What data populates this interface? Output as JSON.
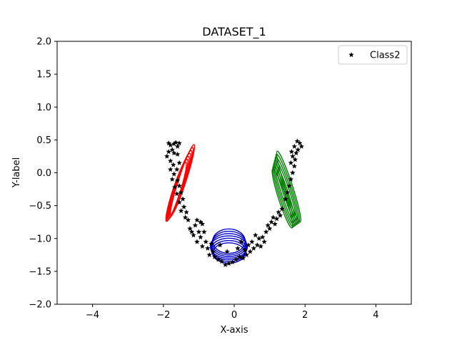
{
  "chart_data": {
    "type": "scatter",
    "title": "DATASET_1",
    "xlabel": "X-axis",
    "ylabel": "Y-label",
    "xlim": [
      -5,
      5
    ],
    "ylim": [
      -2,
      2
    ],
    "xticks": [
      -4,
      -2,
      0,
      2,
      4
    ],
    "xtick_labels": [
      "−4",
      "−2",
      "0",
      "2",
      "4"
    ],
    "yticks": [
      -2.0,
      -1.5,
      -1.0,
      -0.5,
      0.0,
      0.5,
      1.0,
      1.5,
      2.0
    ],
    "ytick_labels": [
      "−2.0",
      "−1.5",
      "−1.0",
      "−0.5",
      "0.0",
      "0.5",
      "1.0",
      "1.5",
      "2.0"
    ],
    "grid": false,
    "legend": {
      "position": "top-right",
      "entries": [
        "Class2"
      ]
    },
    "series": [
      {
        "name": "Class2",
        "marker": "star",
        "color": "#000000",
        "points": [
          [
            -1.85,
            0.45
          ],
          [
            -1.8,
            0.42
          ],
          [
            -1.7,
            0.44
          ],
          [
            -1.65,
            0.46
          ],
          [
            -1.55,
            0.45
          ],
          [
            -1.6,
            0.4
          ],
          [
            -1.75,
            0.35
          ],
          [
            -1.85,
            0.32
          ],
          [
            -1.9,
            0.25
          ],
          [
            -1.7,
            0.3
          ],
          [
            -1.6,
            0.28
          ],
          [
            -1.8,
            0.18
          ],
          [
            -1.72,
            0.12
          ],
          [
            -1.62,
            0.05
          ],
          [
            -1.8,
            0.05
          ],
          [
            -1.7,
            -0.02
          ],
          [
            -1.55,
            0.15
          ],
          [
            -1.75,
            -0.1
          ],
          [
            -1.6,
            -0.12
          ],
          [
            -1.68,
            -0.22
          ],
          [
            -1.55,
            -0.2
          ],
          [
            -1.62,
            -0.32
          ],
          [
            -1.5,
            -0.3
          ],
          [
            -1.45,
            -0.4
          ],
          [
            -1.55,
            -0.45
          ],
          [
            -1.42,
            -0.52
          ],
          [
            -1.5,
            -0.58
          ],
          [
            -1.35,
            -0.6
          ],
          [
            -1.38,
            -0.68
          ],
          [
            -1.3,
            -0.72
          ],
          [
            -1.05,
            -0.72
          ],
          [
            -0.95,
            -0.75
          ],
          [
            -1.1,
            -0.8
          ],
          [
            -0.9,
            -0.78
          ],
          [
            -1.2,
            -0.9
          ],
          [
            -1.25,
            -0.85
          ],
          [
            -1.15,
            -0.95
          ],
          [
            -1.0,
            -0.9
          ],
          [
            -0.85,
            -0.9
          ],
          [
            -0.95,
            -0.98
          ],
          [
            -1.05,
            -1.05
          ],
          [
            -0.8,
            -1.05
          ],
          [
            -0.75,
            -1.15
          ],
          [
            -0.9,
            -1.12
          ],
          [
            -0.65,
            -1.08
          ],
          [
            -0.6,
            -1.2
          ],
          [
            -0.7,
            -1.25
          ],
          [
            -0.55,
            -1.28
          ],
          [
            -0.45,
            -1.32
          ],
          [
            -0.35,
            -1.35
          ],
          [
            -0.25,
            -1.4
          ],
          [
            -0.15,
            -1.38
          ],
          [
            -0.05,
            -1.36
          ],
          [
            0.05,
            -1.32
          ],
          [
            0.15,
            -1.28
          ],
          [
            0.25,
            -1.3
          ],
          [
            0.35,
            -1.25
          ],
          [
            0.3,
            -1.18
          ],
          [
            0.45,
            -1.2
          ],
          [
            0.55,
            -1.15
          ],
          [
            0.4,
            -1.1
          ],
          [
            0.65,
            -1.1
          ],
          [
            0.5,
            -1.05
          ],
          [
            0.7,
            -1.0
          ],
          [
            0.8,
            -0.98
          ],
          [
            0.6,
            -0.95
          ],
          [
            0.9,
            -0.9
          ],
          [
            0.85,
            -1.05
          ],
          [
            0.75,
            -1.12
          ],
          [
            1.0,
            -0.85
          ],
          [
            1.05,
            -0.75
          ],
          [
            1.15,
            -0.78
          ],
          [
            1.2,
            -0.7
          ],
          [
            1.1,
            -0.68
          ],
          [
            0.95,
            -0.8
          ],
          [
            1.25,
            -0.6
          ],
          [
            1.35,
            -0.55
          ],
          [
            1.3,
            -0.65
          ],
          [
            1.45,
            -0.4
          ],
          [
            1.5,
            -0.3
          ],
          [
            1.55,
            -0.2
          ],
          [
            1.6,
            -0.1
          ],
          [
            1.65,
            0.0
          ],
          [
            1.7,
            0.1
          ],
          [
            1.6,
            0.15
          ],
          [
            1.72,
            0.2
          ],
          [
            1.65,
            0.25
          ],
          [
            1.75,
            0.3
          ],
          [
            1.8,
            0.35
          ],
          [
            1.7,
            0.4
          ],
          [
            1.85,
            0.45
          ],
          [
            1.78,
            0.48
          ],
          [
            1.62,
            0.32
          ],
          [
            1.9,
            0.4
          ],
          [
            -0.2,
            -1.2
          ],
          [
            0.1,
            -1.15
          ],
          [
            -0.4,
            -1.1
          ],
          [
            0.2,
            -1.05
          ]
        ]
      }
    ],
    "ellipses": [
      {
        "color": "#ff0000",
        "cx": -1.55,
        "cy": -0.2,
        "rx": 0.12,
        "ry": 0.52,
        "angle_deg": 18,
        "count": 7,
        "spread_x": 0.03,
        "spread_y": 0.03
      },
      {
        "color": "#0000cc",
        "cx": -0.15,
        "cy": -1.13,
        "rx": 0.52,
        "ry": 0.17,
        "angle_deg": 0,
        "count": 7,
        "spread_x": 0.0,
        "spread_y": 0.03
      },
      {
        "color": "#008000",
        "cx": 1.45,
        "cy": -0.3,
        "rx": 0.12,
        "ry": 0.52,
        "angle_deg": -18,
        "count": 7,
        "spread_x": 0.03,
        "spread_y": 0.03
      }
    ]
  }
}
